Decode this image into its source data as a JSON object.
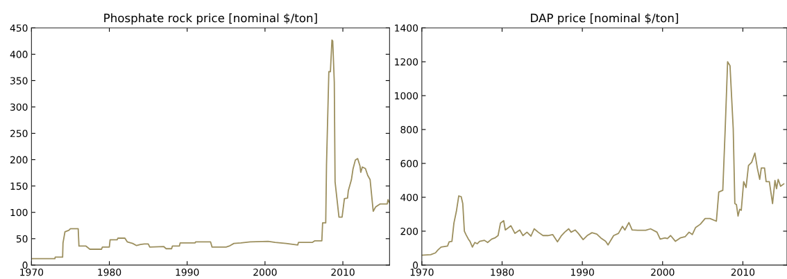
{
  "chart_data": [
    {
      "type": "line",
      "title": "Phosphate rock price [nominal $/ton]",
      "xlim": [
        1970,
        2016
      ],
      "ylim": [
        0,
        450
      ],
      "xticks": [
        1970,
        1980,
        1990,
        2000,
        2010
      ],
      "yticks": [
        0,
        50,
        100,
        150,
        200,
        250,
        300,
        350,
        400,
        450
      ],
      "series": [
        {
          "color": "#9c8f5e",
          "x": [
            1970,
            1973.0,
            1973.05,
            1974,
            1974.05,
            1974.3,
            1974.8,
            1975,
            1976,
            1976.1,
            1977,
            1977.5,
            1979,
            1979.1,
            1980,
            1980.1,
            1981,
            1981.1,
            1982.0,
            1982.3,
            1983,
            1983.5,
            1984,
            1984.5,
            1985,
            1985.2,
            1987,
            1987.3,
            1988,
            1988.1,
            1989,
            1989.1,
            1991.0,
            1991.1,
            1993,
            1993.2,
            1995,
            1995.4,
            1996,
            1996.9,
            1998.1,
            2000.4,
            2001.3,
            2002.7,
            2004.2,
            2004.3,
            2006.1,
            2006.4,
            2007.3,
            2007.4,
            2007.8,
            2007.9,
            2008.2,
            2008.4,
            2008.6,
            2008.7,
            2008.9,
            2009.0,
            2009.5,
            2009.9,
            2010.2,
            2010.6,
            2010.7,
            2011.1,
            2011.3,
            2011.6,
            2011.9,
            2012.2,
            2012.3,
            2012.5,
            2012.9,
            2013.2,
            2013.5,
            2013.9,
            2014.2,
            2014.8,
            2015.7,
            2015.8,
            2016
          ],
          "values": [
            12,
            12,
            15,
            15,
            42,
            63,
            66,
            69,
            69,
            36,
            36,
            30,
            30,
            34,
            34,
            48,
            48,
            51,
            51,
            44,
            41,
            37,
            39,
            40,
            40,
            34,
            35,
            31,
            31,
            36,
            36,
            42,
            42,
            44,
            44,
            34,
            34,
            36,
            41,
            42,
            44,
            45,
            43,
            41,
            38,
            43,
            43,
            46,
            46,
            80,
            80,
            190,
            367,
            367,
            427,
            425,
            347,
            158,
            91,
            91,
            126,
            127,
            141,
            162,
            182,
            199,
            202,
            188,
            176,
            186,
            183,
            170,
            162,
            102,
            110,
            116,
            116,
            124,
            118
          ]
        }
      ]
    },
    {
      "type": "line",
      "title": "DAP price [nominal $/ton]",
      "xlim": [
        1970,
        2015.5
      ],
      "ylim": [
        0,
        1400
      ],
      "xticks": [
        1970,
        1980,
        1990,
        2000,
        2010
      ],
      "yticks": [
        0,
        200,
        400,
        600,
        800,
        1000,
        1200,
        1400
      ],
      "series": [
        {
          "color": "#9c8f5e",
          "x": [
            1970.0,
            1971.1,
            1971.7,
            1972.0,
            1972.4,
            1973.2,
            1973.4,
            1973.75,
            1974.0,
            1974.3,
            1974.6,
            1974.9,
            1975.1,
            1975.3,
            1975.5,
            1975.8,
            1976.0,
            1976.3,
            1976.6,
            1976.9,
            1977.2,
            1977.8,
            1978.2,
            1978.7,
            1979.1,
            1979.5,
            1979.8,
            1980.2,
            1980.4,
            1980.8,
            1981.1,
            1981.6,
            1982.2,
            1982.6,
            1983.1,
            1983.6,
            1984.0,
            1984.5,
            1985.1,
            1985.7,
            1986.3,
            1986.9,
            1987.4,
            1987.8,
            1988.3,
            1988.6,
            1989.1,
            1989.5,
            1990.1,
            1990.6,
            1991.2,
            1991.8,
            1992.3,
            1992.9,
            1993.2,
            1993.9,
            1994.5,
            1995.0,
            1995.3,
            1995.8,
            1996.2,
            1996.9,
            1997.9,
            1998.5,
            1999.3,
            1999.7,
            2000.3,
            2000.6,
            2001.0,
            2001.6,
            2002.2,
            2002.8,
            2003.3,
            2003.7,
            2004.1,
            2004.7,
            2005.3,
            2005.9,
            2006.7,
            2007.0,
            2007.5,
            2007.8,
            2008.1,
            2008.4,
            2008.8,
            2009.0,
            2009.2,
            2009.4,
            2009.6,
            2009.8,
            2010.1,
            2010.4,
            2010.7,
            2011.1,
            2011.5,
            2011.8,
            2012.1,
            2012.3,
            2012.7,
            2012.9,
            2013.3,
            2013.7,
            2014.0,
            2014.2,
            2014.4,
            2014.7,
            2015.1
          ],
          "values": [
            58,
            61,
            72,
            89,
            106,
            112,
            137,
            140,
            248,
            316,
            408,
            404,
            363,
            200,
            180,
            153,
            140,
            106,
            133,
            126,
            140,
            146,
            133,
            153,
            160,
            174,
            248,
            262,
            207,
            221,
            232,
            187,
            207,
            174,
            194,
            171,
            214,
            194,
            174,
            174,
            180,
            137,
            174,
            194,
            214,
            194,
            207,
            187,
            150,
            174,
            191,
            183,
            160,
            140,
            119,
            174,
            187,
            228,
            207,
            251,
            207,
            205,
            205,
            214,
            194,
            153,
            160,
            156,
            174,
            140,
            160,
            167,
            194,
            180,
            221,
            241,
            275,
            275,
            259,
            431,
            441,
            804,
            1200,
            1177,
            804,
            363,
            357,
            289,
            329,
            323,
            492,
            458,
            587,
            607,
            661,
            573,
            506,
            573,
            573,
            492,
            492,
            363,
            499,
            451,
            506,
            465,
            479
          ]
        }
      ]
    }
  ]
}
